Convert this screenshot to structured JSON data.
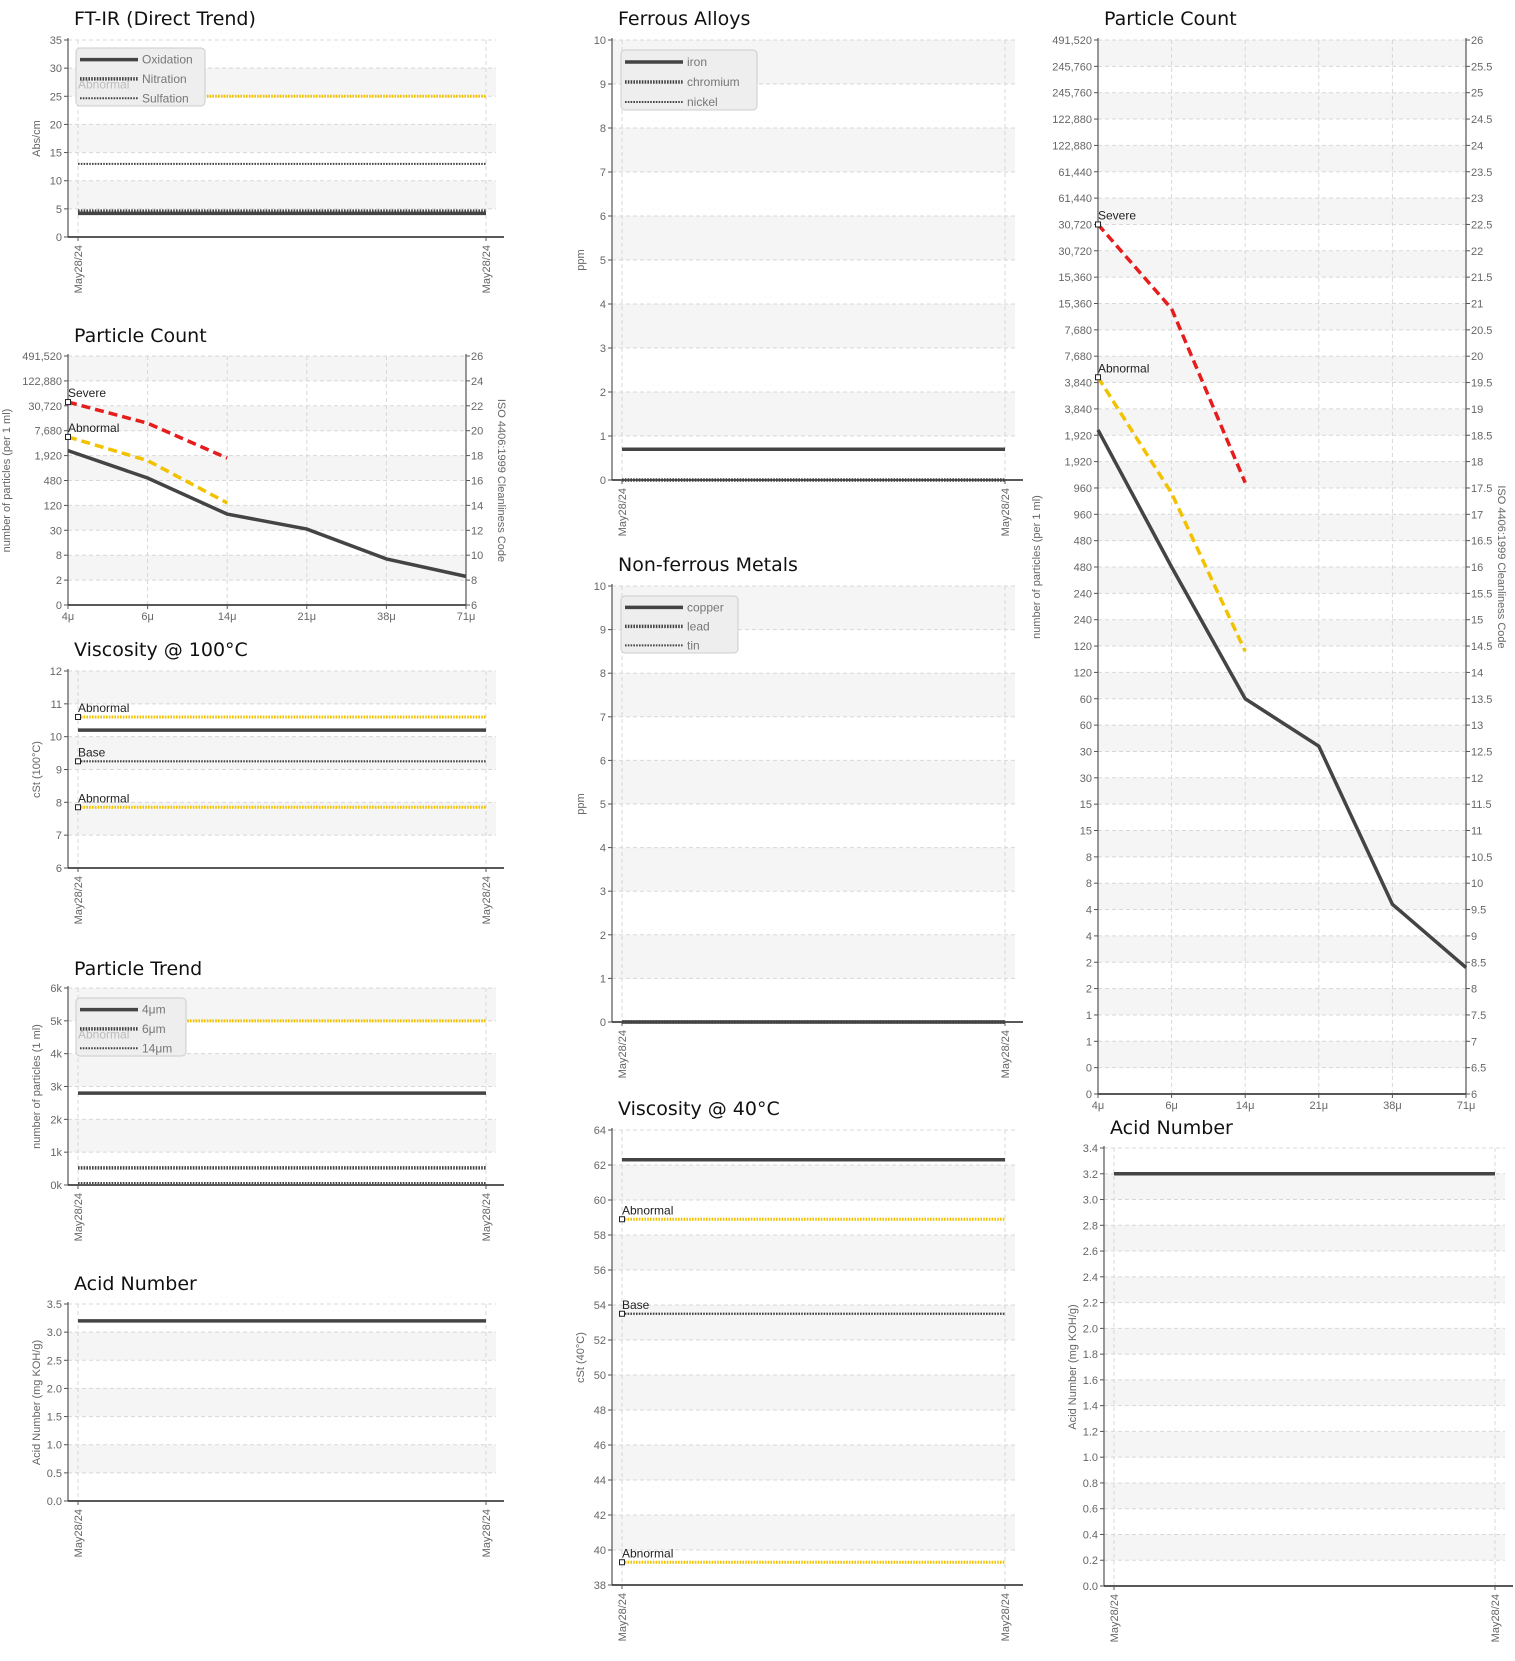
{
  "colors": {
    "series": "#444444",
    "abnormal": "#f2c200",
    "severe": "#e51d1d",
    "base": "#444444",
    "band": "#f5f5f5",
    "grid": "#d8d8d8",
    "axis": "#555555"
  },
  "chart_data": [
    {
      "id": "ftir",
      "type": "line",
      "title": "FT-IR (Direct Trend)",
      "ylabel": "Abs/cm",
      "ylim": [
        0,
        35
      ],
      "yticks": [
        "0",
        "5",
        "10",
        "15",
        "20",
        "25",
        "30",
        "35"
      ],
      "xticks": [
        "May28/24",
        "May28/24"
      ],
      "legend": [
        "Oxidation",
        "Nitration",
        "Sulfation"
      ],
      "legend_note": "Abnormal",
      "series": [
        {
          "name": "Oxidation",
          "style": "solid",
          "values": [
            4.2,
            4.2
          ]
        },
        {
          "name": "Nitration",
          "style": "dotted",
          "values": [
            4.6,
            4.6
          ]
        },
        {
          "name": "Sulfation",
          "style": "dotted-thin",
          "values": [
            13,
            13
          ]
        }
      ],
      "limits": [
        {
          "label": "",
          "kind": "abnormal",
          "value": 25
        }
      ]
    },
    {
      "id": "pc_small",
      "type": "line",
      "title": "Particle Count",
      "ylabel": "number of particles (per 1 ml)",
      "y2label": "ISO 4406:1999 Cleanliness Code",
      "ylim": [
        6,
        26
      ],
      "yticks": [
        "0",
        "2",
        "8",
        "30",
        "120",
        "480",
        "1,920",
        "7,680",
        "30,720",
        "122,880",
        "491,520"
      ],
      "y2ticks": [
        "6",
        "8",
        "10",
        "12",
        "14",
        "16",
        "18",
        "20",
        "22",
        "24",
        "26"
      ],
      "xticks": [
        "4μ",
        "6μ",
        "14μ",
        "21μ",
        "38μ",
        "71μ"
      ],
      "series": [
        {
          "name": "",
          "style": "solid",
          "values": [
            18.4,
            16.2,
            13.3,
            12.1,
            9.7,
            8.3
          ]
        }
      ],
      "curves": [
        {
          "label": "Severe",
          "kind": "severe",
          "values": [
            22.3,
            20.6,
            17.8
          ]
        },
        {
          "label": "Abnormal",
          "kind": "abnormal",
          "values": [
            19.5,
            17.6,
            14.2
          ]
        }
      ]
    },
    {
      "id": "visc100",
      "type": "line",
      "title": "Viscosity @ 100°C",
      "ylabel": "cSt (100°C)",
      "ylim": [
        6,
        12
      ],
      "yticks": [
        "6",
        "7",
        "8",
        "9",
        "10",
        "11",
        "12"
      ],
      "xticks": [
        "May28/24",
        "May28/24"
      ],
      "series": [
        {
          "name": "",
          "style": "solid",
          "values": [
            10.2,
            10.2
          ]
        }
      ],
      "limits": [
        {
          "label": "Abnormal",
          "kind": "abnormal",
          "value": 10.6
        },
        {
          "label": "Base",
          "kind": "base",
          "value": 9.25
        },
        {
          "label": "Abnormal",
          "kind": "abnormal",
          "value": 7.85
        }
      ]
    },
    {
      "id": "ptrend",
      "type": "line",
      "title": "Particle Trend",
      "ylabel": "number of particles (1 ml)",
      "ylim": [
        0,
        6000
      ],
      "yticks": [
        "0k",
        "1k",
        "2k",
        "3k",
        "4k",
        "5k",
        "6k"
      ],
      "xticks": [
        "May28/24",
        "May28/24"
      ],
      "legend": [
        "4μm",
        "6μm",
        "14μm"
      ],
      "legend_note": "Abnormal",
      "series": [
        {
          "name": "4μm",
          "style": "solid",
          "values": [
            2800,
            2800
          ]
        },
        {
          "name": "6μm",
          "style": "dotted",
          "values": [
            520,
            520
          ]
        },
        {
          "name": "14μm",
          "style": "dotted-thin",
          "values": [
            60,
            60
          ]
        }
      ],
      "limits": [
        {
          "label": "",
          "kind": "abnormal",
          "value": 5000
        }
      ]
    },
    {
      "id": "acid_small",
      "type": "line",
      "title": "Acid Number",
      "ylabel": "Acid Number (mg KOH/g)",
      "ylim": [
        0,
        3.5
      ],
      "yticks": [
        "0.0",
        "0.5",
        "1.0",
        "1.5",
        "2.0",
        "2.5",
        "3.0",
        "3.5"
      ],
      "xticks": [
        "May28/24",
        "May28/24"
      ],
      "series": [
        {
          "name": "",
          "style": "solid",
          "values": [
            3.2,
            3.2
          ]
        }
      ],
      "limits": []
    },
    {
      "id": "ferrous",
      "type": "line",
      "title": "Ferrous Alloys",
      "ylabel": "ppm",
      "ylim": [
        0,
        10
      ],
      "yticks": [
        "0",
        "1",
        "2",
        "3",
        "4",
        "5",
        "6",
        "7",
        "8",
        "9",
        "10"
      ],
      "xticks": [
        "May28/24",
        "May28/24"
      ],
      "legend": [
        "iron",
        "chromium",
        "nickel"
      ],
      "series": [
        {
          "name": "iron",
          "style": "solid",
          "values": [
            0.7,
            0.7
          ]
        },
        {
          "name": "chromium",
          "style": "dotted",
          "values": [
            0,
            0
          ]
        },
        {
          "name": "nickel",
          "style": "dotted-thin",
          "values": [
            0,
            0
          ]
        }
      ],
      "limits": []
    },
    {
      "id": "nonferrous",
      "type": "line",
      "title": "Non-ferrous Metals",
      "ylabel": "ppm",
      "ylim": [
        0,
        10
      ],
      "yticks": [
        "0",
        "1",
        "2",
        "3",
        "4",
        "5",
        "6",
        "7",
        "8",
        "9",
        "10"
      ],
      "xticks": [
        "May28/24",
        "May28/24"
      ],
      "legend": [
        "copper",
        "lead",
        "tin"
      ],
      "series": [
        {
          "name": "copper",
          "style": "solid",
          "values": [
            0,
            0
          ]
        },
        {
          "name": "lead",
          "style": "dotted",
          "values": [
            0,
            0
          ]
        },
        {
          "name": "tin",
          "style": "dotted-thin",
          "values": [
            0,
            0
          ]
        }
      ],
      "limits": []
    },
    {
      "id": "visc40",
      "type": "line",
      "title": "Viscosity @ 40°C",
      "ylabel": "cSt (40°C)",
      "ylim": [
        38,
        64
      ],
      "yticks": [
        "38",
        "40",
        "42",
        "44",
        "46",
        "48",
        "50",
        "52",
        "54",
        "56",
        "58",
        "60",
        "62",
        "64"
      ],
      "xticks": [
        "May28/24",
        "May28/24"
      ],
      "series": [
        {
          "name": "",
          "style": "solid",
          "values": [
            62.3,
            62.3
          ]
        }
      ],
      "limits": [
        {
          "label": "Abnormal",
          "kind": "abnormal",
          "value": 58.9
        },
        {
          "label": "Base",
          "kind": "base",
          "value": 53.5
        },
        {
          "label": "Abnormal",
          "kind": "abnormal",
          "value": 39.3
        }
      ]
    },
    {
      "id": "pc_large",
      "type": "line",
      "title": "Particle Count",
      "ylabel": "number of particles (per 1 ml)",
      "y2label": "ISO 4406:1999 Cleanliness Code",
      "ylim": [
        6,
        26
      ],
      "yticks": [
        "0",
        "0",
        "1",
        "1",
        "2",
        "2",
        "4",
        "4",
        "8",
        "8",
        "15",
        "15",
        "30",
        "30",
        "60",
        "60",
        "120",
        "120",
        "240",
        "240",
        "480",
        "480",
        "960",
        "960",
        "1,920",
        "1,920",
        "3,840",
        "3,840",
        "7,680",
        "7,680",
        "15,360",
        "15,360",
        "30,720",
        "30,720",
        "61,440",
        "61,440",
        "122,880",
        "122,880",
        "245,760",
        "245,760",
        "491,520"
      ],
      "y2ticks": [
        "6",
        "6.5",
        "7",
        "7.5",
        "8",
        "8.5",
        "9",
        "9.5",
        "10",
        "10.5",
        "11",
        "11.5",
        "12",
        "12.5",
        "13",
        "13.5",
        "14",
        "14.5",
        "15",
        "15.5",
        "16",
        "16.5",
        "17",
        "17.5",
        "18",
        "18.5",
        "19",
        "19.5",
        "20",
        "20.5",
        "21",
        "21.5",
        "22",
        "22.5",
        "23",
        "23.5",
        "24",
        "24.5",
        "25",
        "25.5",
        "26"
      ],
      "xticks": [
        "4μ",
        "6μ",
        "14μ",
        "21μ",
        "38μ",
        "71μ"
      ],
      "series": [
        {
          "name": "",
          "style": "solid",
          "values": [
            18.6,
            16.0,
            13.5,
            12.6,
            9.6,
            8.4
          ]
        }
      ],
      "curves": [
        {
          "label": "Severe",
          "kind": "severe",
          "values": [
            22.5,
            20.9,
            17.6
          ]
        },
        {
          "label": "Abnormal",
          "kind": "abnormal",
          "values": [
            19.6,
            17.4,
            14.4
          ]
        }
      ]
    },
    {
      "id": "acid_large",
      "type": "line",
      "title": "Acid Number",
      "ylabel": "Acid Number (mg KOH/g)",
      "ylim": [
        0,
        3.4
      ],
      "yticks": [
        "0.0",
        "0.2",
        "0.4",
        "0.6",
        "0.8",
        "1.0",
        "1.2",
        "1.4",
        "1.6",
        "1.8",
        "2.0",
        "2.2",
        "2.4",
        "2.6",
        "2.8",
        "3.0",
        "3.2",
        "3.4"
      ],
      "xticks": [
        "May28/24",
        "May28/24"
      ],
      "series": [
        {
          "name": "",
          "style": "solid",
          "values": [
            3.2,
            3.2
          ]
        }
      ],
      "limits": []
    }
  ]
}
